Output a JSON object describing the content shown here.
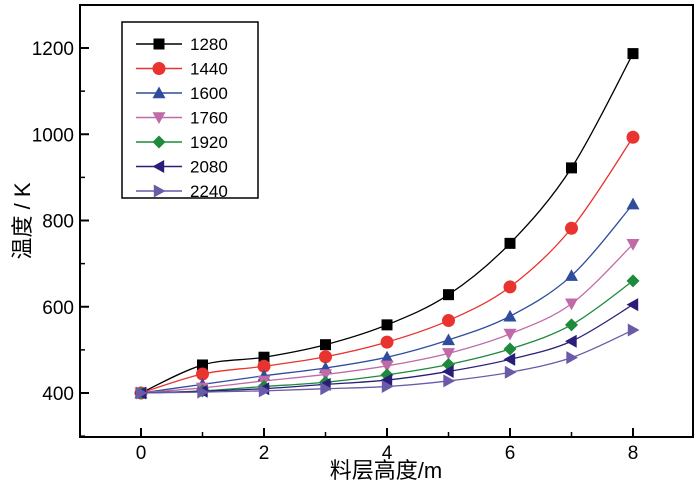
{
  "chart_data": {
    "type": "line",
    "title": "",
    "xlabel": "料层高度/m",
    "ylabel": "温度 / K",
    "xlim": [
      -2.2,
      8.9
    ],
    "ylim": [
      300,
      1300
    ],
    "xticks": [
      0,
      2,
      4,
      6,
      8
    ],
    "yticks": [
      400,
      600,
      800,
      1000,
      1200
    ],
    "grid": false,
    "legend_position": "top-left",
    "x": [
      0,
      1,
      2,
      3,
      4,
      5,
      6,
      7,
      8
    ],
    "series": [
      {
        "name": "1280",
        "color": "#000000",
        "marker": "square",
        "values": [
          400,
          465,
          483,
          512,
          558,
          628,
          747,
          922,
          1187
        ]
      },
      {
        "name": "1440",
        "color": "#e8332e",
        "marker": "circle",
        "values": [
          400,
          444,
          462,
          484,
          518,
          568,
          646,
          782,
          993
        ]
      },
      {
        "name": "1600",
        "color": "#2e4d9c",
        "marker": "triangle-up",
        "values": [
          400,
          420,
          440,
          458,
          483,
          523,
          578,
          672,
          838
        ]
      },
      {
        "name": "1760",
        "color": "#c06aa8",
        "marker": "triangle-down",
        "values": [
          400,
          412,
          428,
          443,
          463,
          492,
          537,
          607,
          745
        ]
      },
      {
        "name": "1920",
        "color": "#1e8a3c",
        "marker": "diamond",
        "values": [
          400,
          405,
          415,
          425,
          442,
          466,
          502,
          558,
          660
        ]
      },
      {
        "name": "2080",
        "color": "#2a1f78",
        "marker": "triangle-left",
        "values": [
          400,
          404,
          410,
          420,
          430,
          450,
          478,
          520,
          605
        ]
      },
      {
        "name": "2240",
        "color": "#6a5aa8",
        "marker": "triangle-right",
        "values": [
          400,
          402,
          405,
          410,
          415,
          428,
          448,
          482,
          546
        ]
      }
    ]
  }
}
